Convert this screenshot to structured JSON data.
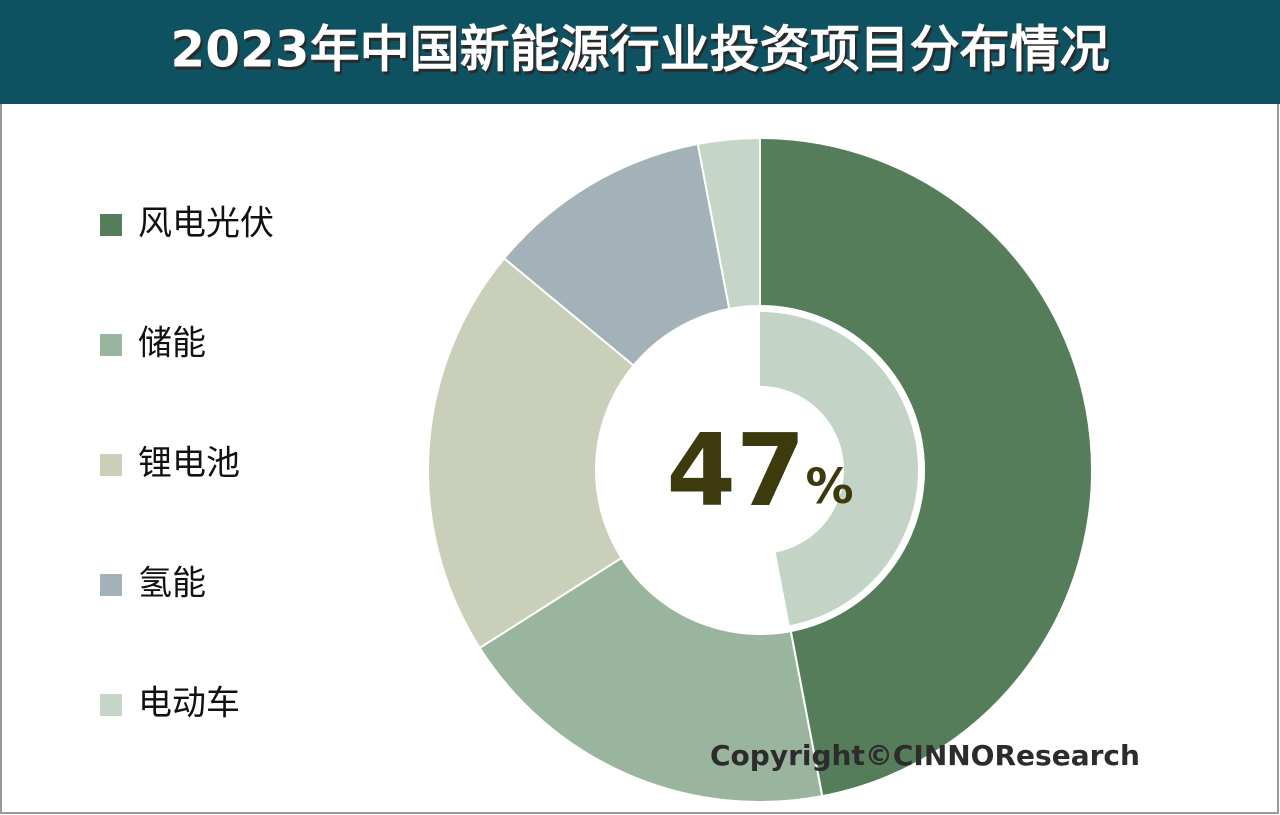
{
  "chart_data": {
    "type": "donut",
    "title": "2023年中国新能源行业投资项目分布情况",
    "categories": [
      "风电光伏",
      "储能",
      "锂电池",
      "氢能",
      "电动车"
    ],
    "values": [
      47,
      19,
      20,
      11,
      3
    ],
    "colors": [
      "#567d5a",
      "#9ab59d",
      "#c9cfb8",
      "#a2b2b8",
      "#c5d5c8"
    ],
    "highlight": {
      "value": 47,
      "unit": "%"
    },
    "highlight_color": "#c3d3c6",
    "source": "Copyright©CINNOResearch"
  }
}
